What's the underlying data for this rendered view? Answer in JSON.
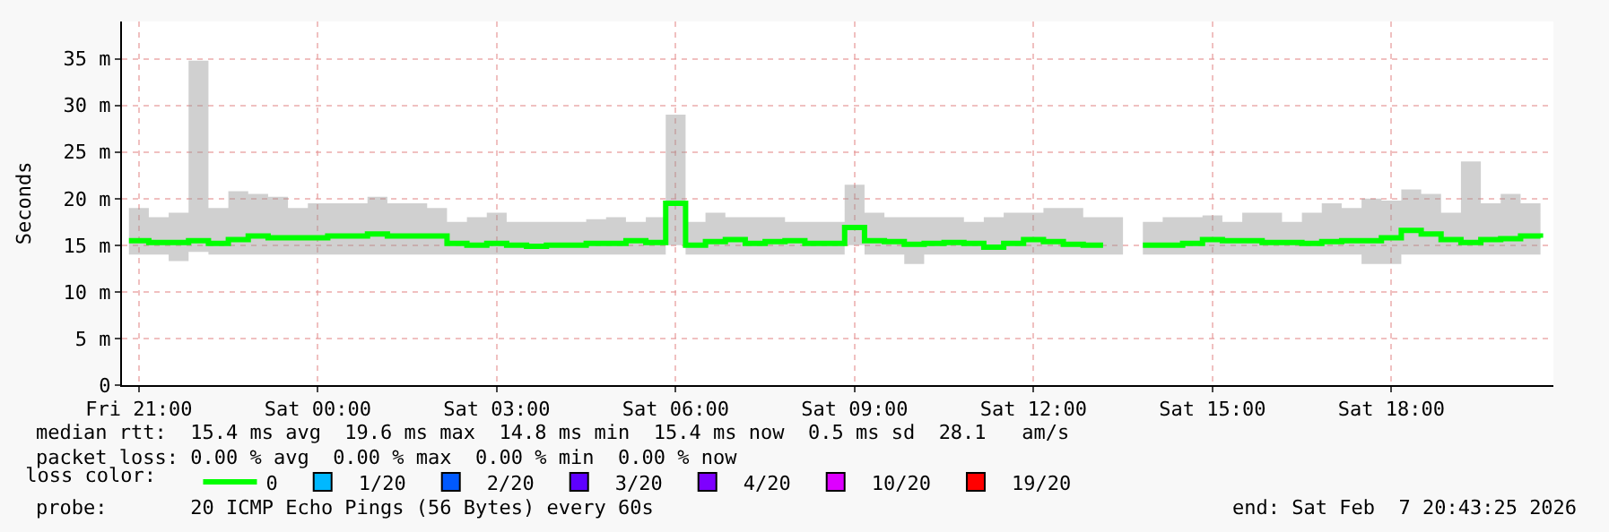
{
  "chart_data": {
    "type": "step",
    "ylabel": "Seconds",
    "x": [
      "2026-02-06T20:50",
      "2026-02-06T21:10",
      "2026-02-06T21:30",
      "2026-02-06T21:50",
      "2026-02-06T22:10",
      "2026-02-06T22:30",
      "2026-02-06T22:50",
      "2026-02-06T23:10",
      "2026-02-06T23:30",
      "2026-02-06T23:50",
      "2026-02-07T00:10",
      "2026-02-07T00:30",
      "2026-02-07T00:50",
      "2026-02-07T01:10",
      "2026-02-07T01:30",
      "2026-02-07T01:50",
      "2026-02-07T02:10",
      "2026-02-07T02:30",
      "2026-02-07T02:50",
      "2026-02-07T03:10",
      "2026-02-07T03:30",
      "2026-02-07T03:50",
      "2026-02-07T04:10",
      "2026-02-07T04:30",
      "2026-02-07T04:50",
      "2026-02-07T05:10",
      "2026-02-07T05:30",
      "2026-02-07T05:50",
      "2026-02-07T06:10",
      "2026-02-07T06:30",
      "2026-02-07T06:50",
      "2026-02-07T07:10",
      "2026-02-07T07:30",
      "2026-02-07T07:50",
      "2026-02-07T08:10",
      "2026-02-07T08:30",
      "2026-02-07T08:50",
      "2026-02-07T09:10",
      "2026-02-07T09:30",
      "2026-02-07T09:50",
      "2026-02-07T10:10",
      "2026-02-07T10:30",
      "2026-02-07T10:50",
      "2026-02-07T11:10",
      "2026-02-07T11:30",
      "2026-02-07T11:50",
      "2026-02-07T12:10",
      "2026-02-07T12:30",
      "2026-02-07T12:50",
      "2026-02-07T13:10",
      "2026-02-07T13:30",
      "2026-02-07T13:50",
      "2026-02-07T14:10",
      "2026-02-07T14:30",
      "2026-02-07T14:50",
      "2026-02-07T15:10",
      "2026-02-07T15:30",
      "2026-02-07T15:50",
      "2026-02-07T16:10",
      "2026-02-07T16:30",
      "2026-02-07T16:50",
      "2026-02-07T17:10",
      "2026-02-07T17:30",
      "2026-02-07T17:50",
      "2026-02-07T18:10",
      "2026-02-07T18:30",
      "2026-02-07T18:50",
      "2026-02-07T19:10",
      "2026-02-07T19:30",
      "2026-02-07T19:50",
      "2026-02-07T20:10",
      "2026-02-07T20:30"
    ],
    "series": [
      {
        "name": "0",
        "color": "#00ff00",
        "values": [
          15.5,
          15.3,
          15.3,
          15.5,
          15.2,
          15.6,
          16.0,
          15.8,
          15.8,
          15.8,
          16.0,
          16.0,
          16.2,
          16.0,
          16.0,
          16.0,
          15.2,
          15.0,
          15.2,
          15.0,
          14.9,
          15.0,
          15.0,
          15.2,
          15.2,
          15.5,
          15.3,
          19.5,
          15.0,
          15.4,
          15.6,
          15.2,
          15.4,
          15.5,
          15.2,
          15.2,
          16.9,
          15.5,
          15.4,
          15.1,
          15.2,
          15.3,
          15.2,
          14.8,
          15.2,
          15.6,
          15.4,
          15.1,
          15.0,
          15.0,
          null,
          15.0,
          15.0,
          15.2,
          15.6,
          15.5,
          15.5,
          15.3,
          15.3,
          15.2,
          15.4,
          15.5,
          15.5,
          15.8,
          16.6,
          16.2,
          15.6,
          15.3,
          15.6,
          15.7,
          16.0,
          15.8
        ],
        "lower": [
          14,
          14,
          13.3,
          14.3,
          14,
          14,
          14,
          14,
          14,
          14,
          14,
          14,
          14,
          14,
          14,
          14,
          14,
          14,
          14,
          14,
          14,
          14,
          14,
          14,
          14,
          14,
          14,
          15.0,
          14,
          14,
          14,
          14,
          14,
          14,
          14,
          14,
          15.0,
          14,
          14,
          13,
          14,
          14,
          14,
          14,
          14,
          14,
          14,
          14,
          14,
          14,
          null,
          14,
          14,
          14,
          14,
          14,
          14,
          14,
          14,
          14,
          14,
          14,
          13,
          13,
          14,
          14,
          14,
          14,
          14,
          14,
          14,
          14
        ],
        "upper": [
          19,
          18,
          18.5,
          34.8,
          19,
          20.8,
          20.5,
          20.2,
          19,
          19.5,
          19.5,
          19.5,
          20.2,
          19.5,
          19.5,
          19,
          17.5,
          18,
          18.5,
          17.5,
          17.5,
          17.5,
          17.5,
          17.8,
          18,
          17.5,
          18,
          29,
          17.5,
          18.5,
          18,
          18,
          18,
          17.5,
          17.5,
          17.5,
          21.5,
          18.5,
          18,
          18,
          18,
          18,
          17.5,
          18,
          18.5,
          18.5,
          19,
          19,
          18,
          18,
          null,
          17.5,
          18,
          18,
          18.2,
          17.5,
          18.5,
          18.5,
          17.5,
          18.5,
          19.5,
          19,
          20,
          19.8,
          21,
          20.5,
          18.5,
          24,
          19.5,
          20.5,
          19.5,
          19.5
        ]
      },
      {
        "name": "1/20",
        "color": "#00b8ff",
        "values": [
          null,
          null,
          null,
          null,
          null,
          null,
          null,
          null,
          null,
          null,
          null,
          null,
          null,
          null,
          null,
          null,
          null,
          null,
          null,
          null,
          null,
          null,
          null,
          null,
          null,
          null,
          null,
          null,
          null,
          null,
          null,
          null,
          null,
          null,
          null,
          null,
          null,
          null,
          null,
          null,
          null,
          null,
          null,
          null,
          null,
          null,
          null,
          null,
          null,
          null,
          null,
          null,
          null,
          null,
          null,
          null,
          null,
          null,
          null,
          null,
          null,
          null,
          null,
          null,
          null,
          null,
          null,
          null,
          null,
          null,
          null,
          null
        ]
      },
      {
        "name": "2/20",
        "color": "#0059ff",
        "values": [
          null,
          null,
          null,
          null,
          null,
          null,
          null,
          null,
          null,
          null,
          null,
          null,
          null,
          null,
          null,
          null,
          null,
          null,
          null,
          null,
          null,
          null,
          null,
          null,
          null,
          null,
          null,
          null,
          null,
          null,
          null,
          null,
          null,
          null,
          null,
          null,
          null,
          null,
          null,
          null,
          null,
          null,
          null,
          null,
          null,
          null,
          null,
          null,
          null,
          null,
          null,
          null,
          null,
          null,
          null,
          null,
          null,
          null,
          null,
          null,
          null,
          null,
          null,
          null,
          null,
          null,
          null,
          null,
          null,
          null,
          null,
          null
        ]
      },
      {
        "name": "3/20",
        "color": "#5e00ff",
        "values": [
          null,
          null,
          null,
          null,
          null,
          null,
          null,
          null,
          null,
          null,
          null,
          null,
          null,
          null,
          null,
          null,
          null,
          null,
          null,
          null,
          null,
          null,
          null,
          null,
          null,
          null,
          null,
          null,
          null,
          null,
          null,
          null,
          null,
          null,
          null,
          null,
          null,
          null,
          null,
          null,
          null,
          null,
          null,
          null,
          null,
          null,
          null,
          null,
          null,
          null,
          null,
          null,
          null,
          null,
          null,
          null,
          null,
          null,
          null,
          null,
          null,
          null,
          null,
          null,
          null,
          null,
          null,
          null,
          null,
          null,
          null,
          null
        ]
      },
      {
        "name": "4/20",
        "color": "#7e00ff",
        "values": [
          null,
          null,
          null,
          null,
          null,
          null,
          null,
          null,
          null,
          null,
          null,
          null,
          null,
          null,
          null,
          null,
          null,
          null,
          null,
          null,
          null,
          null,
          null,
          null,
          null,
          null,
          null,
          null,
          null,
          null,
          null,
          null,
          null,
          null,
          null,
          null,
          null,
          null,
          null,
          null,
          null,
          null,
          null,
          null,
          null,
          null,
          null,
          null,
          null,
          null,
          null,
          null,
          null,
          null,
          null,
          null,
          null,
          null,
          null,
          null,
          null,
          null,
          null,
          null,
          null,
          null,
          null,
          null,
          null,
          null,
          null,
          null
        ]
      },
      {
        "name": "10/20",
        "color": "#dd00ff",
        "values": [
          null,
          null,
          null,
          null,
          null,
          null,
          null,
          null,
          null,
          null,
          null,
          null,
          null,
          null,
          null,
          null,
          null,
          null,
          null,
          null,
          null,
          null,
          null,
          null,
          null,
          null,
          null,
          null,
          null,
          null,
          null,
          null,
          null,
          null,
          null,
          null,
          null,
          null,
          null,
          null,
          null,
          null,
          null,
          null,
          null,
          null,
          null,
          null,
          null,
          null,
          null,
          null,
          null,
          null,
          null,
          null,
          null,
          null,
          null,
          null,
          null,
          null,
          null,
          null,
          null,
          null,
          null,
          null,
          null,
          null,
          null,
          null
        ]
      },
      {
        "name": "19/20",
        "color": "#ff0000",
        "values": [
          null,
          null,
          null,
          null,
          null,
          null,
          null,
          null,
          null,
          null,
          null,
          null,
          null,
          null,
          null,
          null,
          null,
          null,
          null,
          null,
          null,
          null,
          null,
          null,
          null,
          null,
          null,
          null,
          null,
          null,
          null,
          null,
          null,
          null,
          null,
          null,
          null,
          null,
          null,
          null,
          null,
          null,
          null,
          null,
          null,
          null,
          null,
          null,
          null,
          null,
          null,
          null,
          null,
          null,
          null,
          null,
          null,
          null,
          null,
          null,
          null,
          null,
          null,
          null,
          null,
          null,
          null,
          null,
          null,
          null,
          null,
          null
        ]
      }
    ],
    "legend_title": "loss color:",
    "legend": "bottom left",
    "xlim": [
      "2026-02-06T20:43",
      "2026-02-07T20:43"
    ],
    "xticks": [
      {
        "value": "2026-02-06T21:00",
        "label": "Fri 21:00"
      },
      {
        "value": "2026-02-07T00:00",
        "label": "Sat 00:00"
      },
      {
        "value": "2026-02-07T03:00",
        "label": "Sat 03:00"
      },
      {
        "value": "2026-02-07T06:00",
        "label": "Sat 06:00"
      },
      {
        "value": "2026-02-07T09:00",
        "label": "Sat 09:00"
      },
      {
        "value": "2026-02-07T12:00",
        "label": "Sat 12:00"
      },
      {
        "value": "2026-02-07T15:00",
        "label": "Sat 15:00"
      },
      {
        "value": "2026-02-07T18:00",
        "label": "Sat 18:00"
      }
    ],
    "ylim": [
      0,
      39
    ],
    "yticks": [
      0,
      {
        "value": 5,
        "label": "5 m"
      },
      {
        "value": 10,
        "label": "10 m"
      },
      {
        "value": 15,
        "label": "15 m"
      },
      {
        "value": 20,
        "label": "20 m"
      },
      {
        "value": 25,
        "label": "25 m"
      },
      {
        "value": 30,
        "label": "30 m"
      },
      {
        "value": 35,
        "label": "35 m"
      }
    ],
    "grid": true,
    "line_style": "solid",
    "marker": "none",
    "annotations": [
      "median rtt:  15.4 ms avg  19.6 ms max  14.8 ms min  15.4 ms now  0.5 ms sd  28.1   am/s",
      "packet loss: 0.00 % avg  0.00 % max  0.00 % min  0.00 % now",
      "probe:       20 ICMP Echo Pings (56 Bytes) every 60s",
      "end: Sat Feb  7 20:43:25 2026"
    ]
  }
}
